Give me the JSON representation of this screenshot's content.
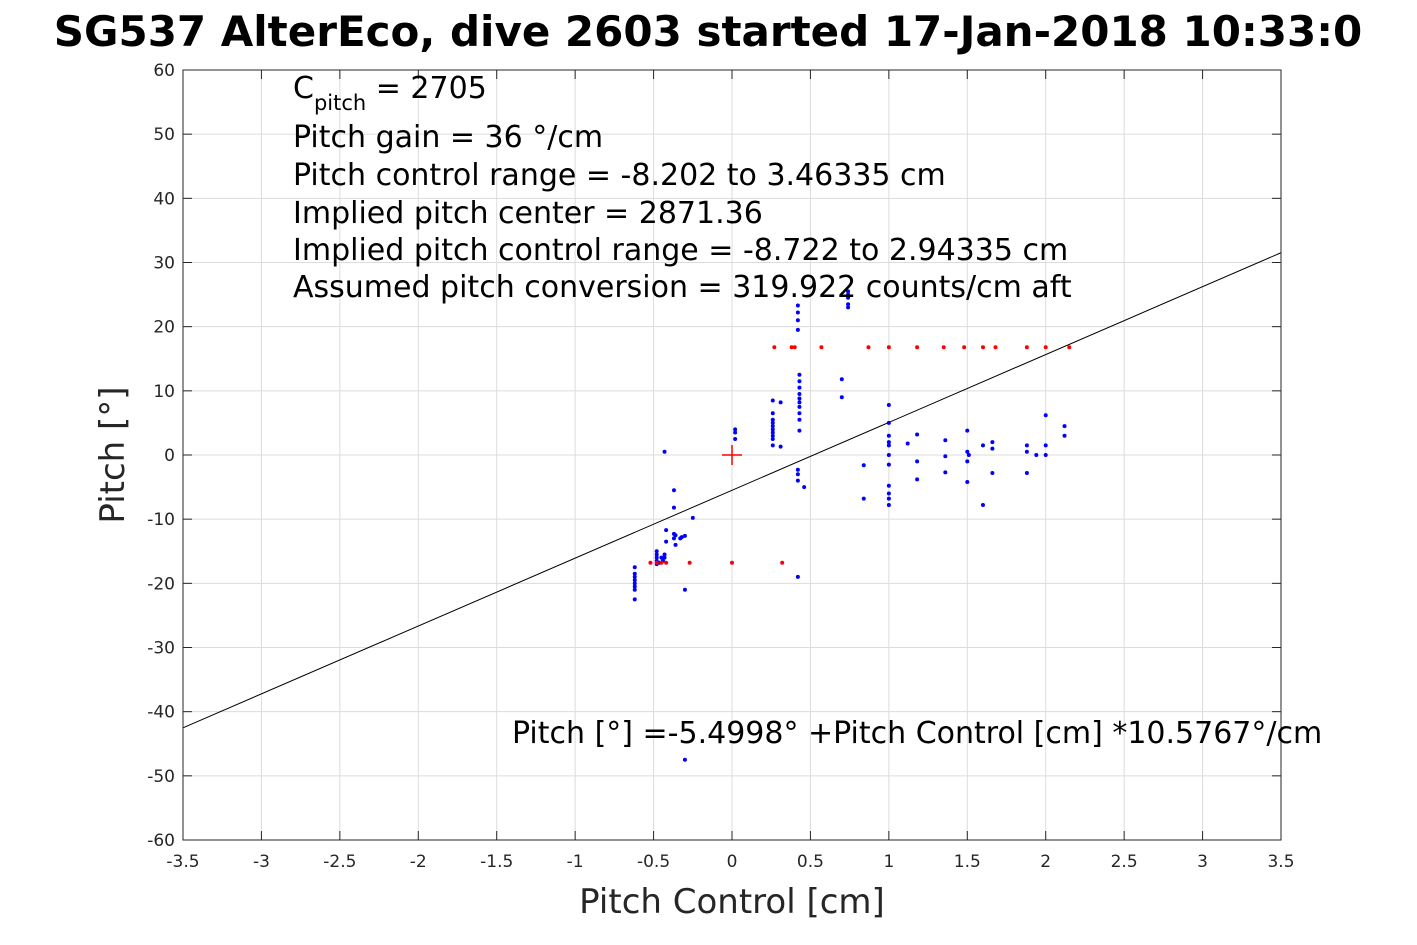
{
  "chart_data": {
    "type": "scatter",
    "title": "SG537 AlterEco, dive 2603 started 17-Jan-2018 10:33:0",
    "xlabel": "Pitch Control [cm]",
    "ylabel": "Pitch [°]",
    "xlim": [
      -3.5,
      3.5
    ],
    "ylim": [
      -60,
      60
    ],
    "xticks": [
      "-3.5",
      "-3",
      "-2.5",
      "-2",
      "-1.5",
      "-1",
      "-0.5",
      "0",
      "0.5",
      "1",
      "1.5",
      "2",
      "2.5",
      "3",
      "3.5"
    ],
    "yticks": [
      "60",
      "50",
      "40",
      "30",
      "20",
      "10",
      "0",
      "-10",
      "-20",
      "-30",
      "-40",
      "-50",
      "-60"
    ],
    "grid": true,
    "annotations": {
      "cpitch_base": "C",
      "cpitch_sub": "pitch",
      "cpitch_rest": " = 2705",
      "gain": "Pitch gain = 36 °/cm",
      "range": "Pitch control range = -8.202 to 3.46335 cm",
      "center": "Implied pitch center = 2871.36",
      "implied_range": "Implied pitch control range = -8.722 to 2.94335 cm",
      "conversion": "Assumed pitch conversion = 319.922 counts/cm aft",
      "fit": "Pitch [°] =-5.4998° +Pitch Control [cm] *10.5767°/cm"
    },
    "fit_line": {
      "intercept": -5.4998,
      "slope": 10.5767
    },
    "center_marker": {
      "x": 0,
      "y": 0,
      "color": "#ff0000"
    },
    "series": [
      {
        "color": "#0000ff",
        "points": [
          [
            -0.62,
            -22.5
          ],
          [
            -0.62,
            -21
          ],
          [
            -0.62,
            -20.5
          ],
          [
            -0.62,
            -20
          ],
          [
            -0.62,
            -19.5
          ],
          [
            -0.62,
            -19
          ],
          [
            -0.62,
            -18.5
          ],
          [
            -0.62,
            -17.5
          ],
          [
            -0.48,
            -17
          ],
          [
            -0.48,
            -16.5
          ],
          [
            -0.48,
            -16
          ],
          [
            -0.48,
            -15.5
          ],
          [
            -0.48,
            -15
          ],
          [
            -0.46,
            -16.8
          ],
          [
            -0.45,
            -16
          ],
          [
            -0.44,
            -16.5
          ],
          [
            -0.43,
            -16
          ],
          [
            -0.43,
            -15.5
          ],
          [
            -0.42,
            -13.5
          ],
          [
            -0.42,
            -11.7
          ],
          [
            -0.43,
            0.5
          ],
          [
            -0.37,
            -5.5
          ],
          [
            -0.37,
            -8.2
          ],
          [
            -0.37,
            -12.3
          ],
          [
            -0.37,
            -13
          ],
          [
            -0.36,
            -12.5
          ],
          [
            -0.36,
            -14
          ],
          [
            -0.33,
            -13
          ],
          [
            -0.32,
            -12.8
          ],
          [
            -0.3,
            -12.6
          ],
          [
            -0.3,
            -21
          ],
          [
            -0.25,
            -9.8
          ],
          [
            -0.3,
            -47.5
          ],
          [
            0.02,
            2.5
          ],
          [
            0.02,
            3.5
          ],
          [
            0.02,
            4
          ],
          [
            0.26,
            1.5
          ],
          [
            0.26,
            2.5
          ],
          [
            0.26,
            3
          ],
          [
            0.26,
            3.5
          ],
          [
            0.26,
            4
          ],
          [
            0.26,
            4.5
          ],
          [
            0.26,
            5
          ],
          [
            0.26,
            5.5
          ],
          [
            0.26,
            6.5
          ],
          [
            0.26,
            8.5
          ],
          [
            0.31,
            8.2
          ],
          [
            0.31,
            1.3
          ],
          [
            0.42,
            -2.3
          ],
          [
            0.42,
            -3
          ],
          [
            0.42,
            -4
          ],
          [
            0.42,
            -19
          ],
          [
            0.43,
            3.8
          ],
          [
            0.43,
            5.5
          ],
          [
            0.43,
            6.5
          ],
          [
            0.43,
            7.5
          ],
          [
            0.43,
            8.2
          ],
          [
            0.43,
            8.8
          ],
          [
            0.43,
            9.5
          ],
          [
            0.43,
            10.5
          ],
          [
            0.43,
            11.5
          ],
          [
            0.43,
            12.5
          ],
          [
            0.42,
            19.5
          ],
          [
            0.42,
            21
          ],
          [
            0.42,
            22.2
          ],
          [
            0.42,
            23.3
          ],
          [
            0.46,
            -5
          ],
          [
            0.7,
            11.8
          ],
          [
            0.7,
            9
          ],
          [
            0.74,
            23
          ],
          [
            0.74,
            23.5
          ],
          [
            0.74,
            24.5
          ],
          [
            0.74,
            25
          ],
          [
            0.74,
            25.5
          ],
          [
            0.84,
            -1.6
          ],
          [
            0.84,
            -6.8
          ],
          [
            1.0,
            5
          ],
          [
            1.0,
            7.8
          ],
          [
            1.0,
            3
          ],
          [
            1.0,
            2
          ],
          [
            1.0,
            1.5
          ],
          [
            1.0,
            0
          ],
          [
            1.0,
            -1.5
          ],
          [
            1.0,
            -4.8
          ],
          [
            1.0,
            -6
          ],
          [
            1.0,
            -6.8
          ],
          [
            1.0,
            -7.8
          ],
          [
            1.12,
            1.8
          ],
          [
            1.18,
            3.2
          ],
          [
            1.18,
            -1
          ],
          [
            1.18,
            -3.8
          ],
          [
            1.36,
            2.3
          ],
          [
            1.36,
            -0.2
          ],
          [
            1.36,
            -2.7
          ],
          [
            1.5,
            3.8
          ],
          [
            1.5,
            0.5
          ],
          [
            1.5,
            -1
          ],
          [
            1.5,
            -4.2
          ],
          [
            1.51,
            0
          ],
          [
            1.6,
            1.5
          ],
          [
            1.6,
            -7.8
          ],
          [
            1.66,
            2
          ],
          [
            1.66,
            1
          ],
          [
            1.66,
            -2.8
          ],
          [
            1.88,
            1.5
          ],
          [
            1.88,
            0.5
          ],
          [
            1.88,
            -2.8
          ],
          [
            1.94,
            0
          ],
          [
            2.0,
            6.2
          ],
          [
            2.0,
            1.5
          ],
          [
            2.0,
            0
          ],
          [
            2.12,
            4.5
          ],
          [
            2.12,
            3
          ]
        ]
      },
      {
        "color": "#ff0000",
        "points": [
          [
            -0.52,
            -16.8
          ],
          [
            -0.48,
            -16.8
          ],
          [
            -0.45,
            -16.8
          ],
          [
            -0.42,
            -16.8
          ],
          [
            -0.27,
            -16.8
          ],
          [
            0.0,
            -16.8
          ],
          [
            0.32,
            -16.8
          ],
          [
            0.27,
            16.8
          ],
          [
            0.38,
            16.8
          ],
          [
            0.4,
            16.8
          ],
          [
            0.57,
            16.8
          ],
          [
            0.87,
            16.8
          ],
          [
            1.0,
            16.8
          ],
          [
            1.18,
            16.8
          ],
          [
            1.35,
            16.8
          ],
          [
            1.48,
            16.8
          ],
          [
            1.6,
            16.8
          ],
          [
            1.68,
            16.8
          ],
          [
            1.88,
            16.8
          ],
          [
            2.0,
            16.8
          ],
          [
            2.15,
            16.8
          ]
        ]
      }
    ]
  }
}
